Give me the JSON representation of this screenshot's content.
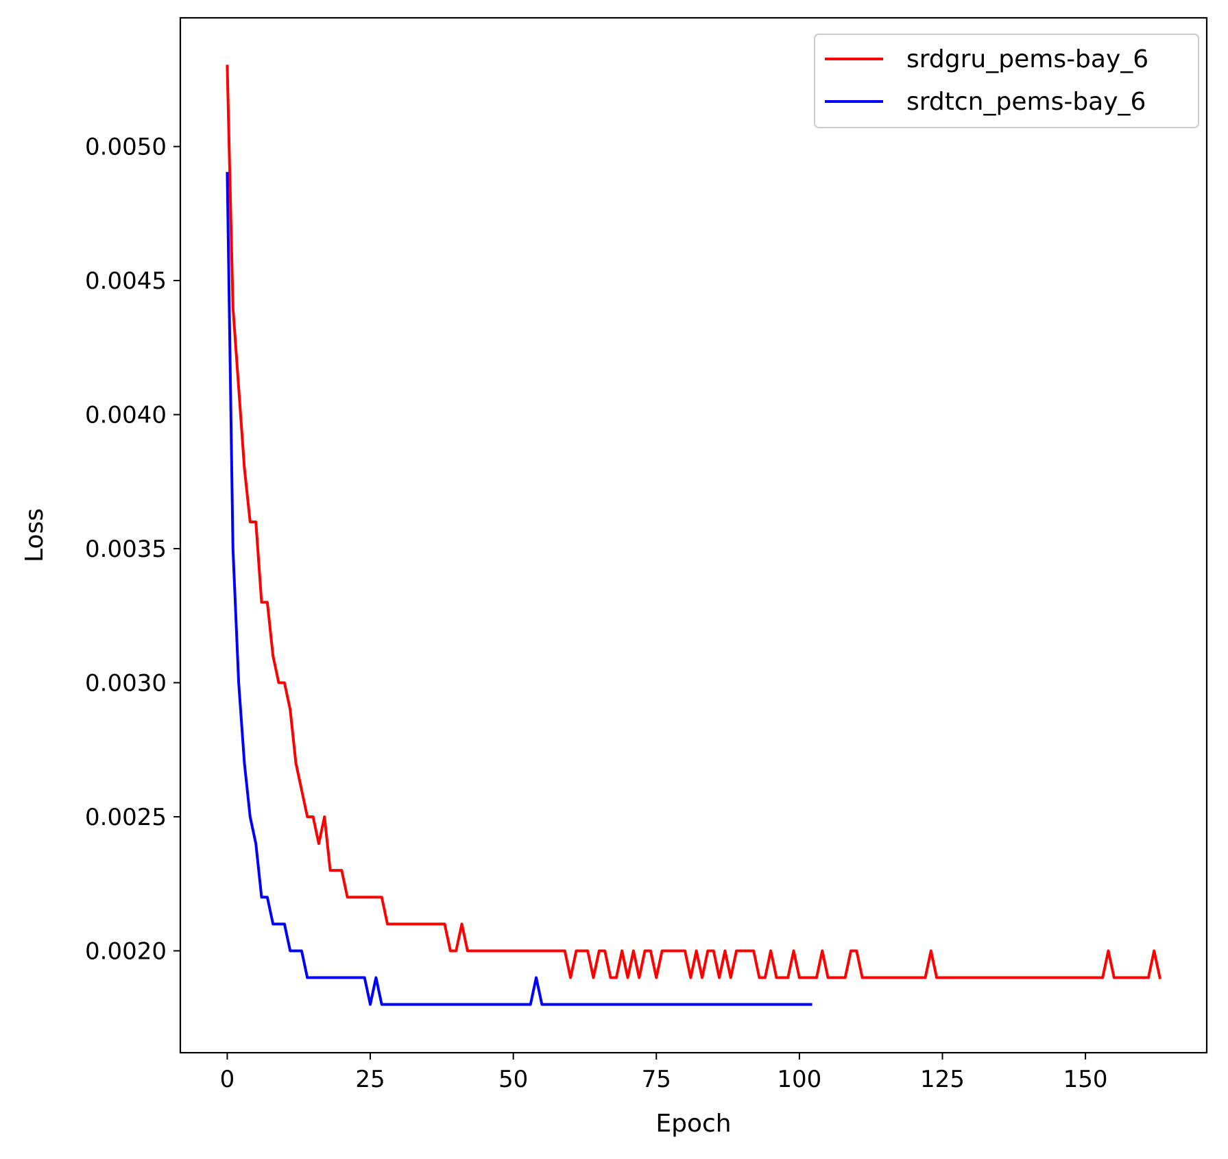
{
  "chart_data": {
    "type": "line",
    "title": "",
    "xlabel": "Epoch",
    "ylabel": "Loss",
    "xlim": [
      -8.2,
      171.2
    ],
    "ylim": [
      0.00162,
      0.00548
    ],
    "x_ticks": [
      0,
      25,
      50,
      75,
      100,
      125,
      150
    ],
    "x_tick_labels": [
      "0",
      "25",
      "50",
      "75",
      "100",
      "125",
      "150"
    ],
    "y_ticks": [
      0.002,
      0.0025,
      0.003,
      0.0035,
      0.004,
      0.0045,
      0.005
    ],
    "y_tick_labels": [
      "0.0020",
      "0.0025",
      "0.0030",
      "0.0035",
      "0.0040",
      "0.0045",
      "0.0050"
    ],
    "grid": false,
    "legend_position": "top-right",
    "series": [
      {
        "name": "srdgru_pems-bay_6",
        "color": "#ff0000",
        "values": [
          0.0053,
          0.0044,
          0.0041,
          0.0038,
          0.0036,
          0.0036,
          0.0033,
          0.0033,
          0.0031,
          0.003,
          0.003,
          0.0029,
          0.0027,
          0.0026,
          0.0025,
          0.0025,
          0.0024,
          0.0025,
          0.0023,
          0.0023,
          0.0023,
          0.0022,
          0.0022,
          0.0022,
          0.0022,
          0.0022,
          0.0022,
          0.0022,
          0.0021,
          0.0021,
          0.0021,
          0.0021,
          0.0021,
          0.0021,
          0.0021,
          0.0021,
          0.0021,
          0.0021,
          0.0021,
          0.002,
          0.002,
          0.0021,
          0.002,
          0.002,
          0.002,
          0.002,
          0.002,
          0.002,
          0.002,
          0.002,
          0.002,
          0.002,
          0.002,
          0.002,
          0.002,
          0.002,
          0.002,
          0.002,
          0.002,
          0.002,
          0.0019,
          0.002,
          0.002,
          0.002,
          0.0019,
          0.002,
          0.002,
          0.0019,
          0.0019,
          0.002,
          0.0019,
          0.002,
          0.0019,
          0.002,
          0.002,
          0.0019,
          0.002,
          0.002,
          0.002,
          0.002,
          0.002,
          0.0019,
          0.002,
          0.0019,
          0.002,
          0.002,
          0.0019,
          0.002,
          0.0019,
          0.002,
          0.002,
          0.002,
          0.002,
          0.0019,
          0.0019,
          0.002,
          0.0019,
          0.0019,
          0.0019,
          0.002,
          0.0019,
          0.0019,
          0.0019,
          0.0019,
          0.002,
          0.0019,
          0.0019,
          0.0019,
          0.0019,
          0.002,
          0.002,
          0.0019,
          0.0019,
          0.0019,
          0.0019,
          0.0019,
          0.0019,
          0.0019,
          0.0019,
          0.0019,
          0.0019,
          0.0019,
          0.0019,
          0.002,
          0.0019,
          0.0019,
          0.0019,
          0.0019,
          0.0019,
          0.0019,
          0.0019,
          0.0019,
          0.0019,
          0.0019,
          0.0019,
          0.0019,
          0.0019,
          0.0019,
          0.0019,
          0.0019,
          0.0019,
          0.0019,
          0.0019,
          0.0019,
          0.0019,
          0.0019,
          0.0019,
          0.0019,
          0.0019,
          0.0019,
          0.0019,
          0.0019,
          0.0019,
          0.0019,
          0.002,
          0.0019,
          0.0019,
          0.0019,
          0.0019,
          0.0019,
          0.0019,
          0.0019,
          0.002,
          0.0019
        ]
      },
      {
        "name": "srdtcn_pems-bay_6",
        "color": "#0000ff",
        "values": [
          0.0049,
          0.0035,
          0.003,
          0.0027,
          0.0025,
          0.0024,
          0.0022,
          0.0022,
          0.0021,
          0.0021,
          0.0021,
          0.002,
          0.002,
          0.002,
          0.0019,
          0.0019,
          0.0019,
          0.0019,
          0.0019,
          0.0019,
          0.0019,
          0.0019,
          0.0019,
          0.0019,
          0.0019,
          0.0018,
          0.0019,
          0.0018,
          0.0018,
          0.0018,
          0.0018,
          0.0018,
          0.0018,
          0.0018,
          0.0018,
          0.0018,
          0.0018,
          0.0018,
          0.0018,
          0.0018,
          0.0018,
          0.0018,
          0.0018,
          0.0018,
          0.0018,
          0.0018,
          0.0018,
          0.0018,
          0.0018,
          0.0018,
          0.0018,
          0.0018,
          0.0018,
          0.0018,
          0.0019,
          0.0018,
          0.0018,
          0.0018,
          0.0018,
          0.0018,
          0.0018,
          0.0018,
          0.0018,
          0.0018,
          0.0018,
          0.0018,
          0.0018,
          0.0018,
          0.0018,
          0.0018,
          0.0018,
          0.0018,
          0.0018,
          0.0018,
          0.0018,
          0.0018,
          0.0018,
          0.0018,
          0.0018,
          0.0018,
          0.0018,
          0.0018,
          0.0018,
          0.0018,
          0.0018,
          0.0018,
          0.0018,
          0.0018,
          0.0018,
          0.0018,
          0.0018,
          0.0018,
          0.0018,
          0.0018,
          0.0018,
          0.0018,
          0.0018,
          0.0018,
          0.0018,
          0.0018,
          0.0018,
          0.0018,
          0.0018
        ]
      }
    ]
  }
}
